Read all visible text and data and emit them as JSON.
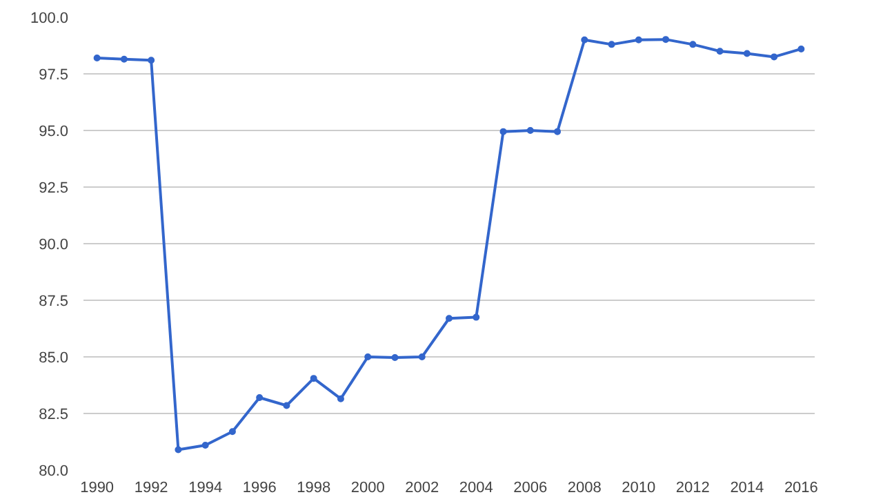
{
  "chart_data": {
    "type": "line",
    "x": [
      1990,
      1991,
      1992,
      1993,
      1994,
      1995,
      1996,
      1997,
      1998,
      1999,
      2000,
      2001,
      2002,
      2003,
      2004,
      2005,
      2006,
      2007,
      2008,
      2009,
      2010,
      2011,
      2012,
      2013,
      2014,
      2015,
      2016
    ],
    "series": [
      {
        "color": "#3366cc",
        "values": [
          98.2,
          98.15,
          98.1,
          80.9,
          81.1,
          81.7,
          83.2,
          82.85,
          84.05,
          83.15,
          85.0,
          84.97,
          85.0,
          86.7,
          86.75,
          94.95,
          95.0,
          94.95,
          99.0,
          98.8,
          99.0,
          99.02,
          98.8,
          98.5,
          98.4,
          98.25,
          98.6
        ]
      }
    ],
    "xlim": [
      1989.5,
      2016.5
    ],
    "xticks": [
      1990,
      1992,
      1994,
      1996,
      1998,
      2000,
      2002,
      2004,
      2006,
      2008,
      2010,
      2012,
      2014,
      2016
    ],
    "ylim": [
      80,
      100
    ],
    "yticks": [
      {
        "value": 80,
        "label": "80.0"
      },
      {
        "value": 82.5,
        "label": "82.5"
      },
      {
        "value": 85,
        "label": "85.0"
      },
      {
        "value": 87.5,
        "label": "87.5"
      },
      {
        "value": 90,
        "label": "90.0"
      },
      {
        "value": 92.5,
        "label": "92.5"
      },
      {
        "value": 95,
        "label": "95.0"
      },
      {
        "value": 97.5,
        "label": "97.5"
      },
      {
        "value": 100,
        "label": "100.0"
      }
    ],
    "grid": "y",
    "marker": "circle",
    "line_style": "solid"
  }
}
